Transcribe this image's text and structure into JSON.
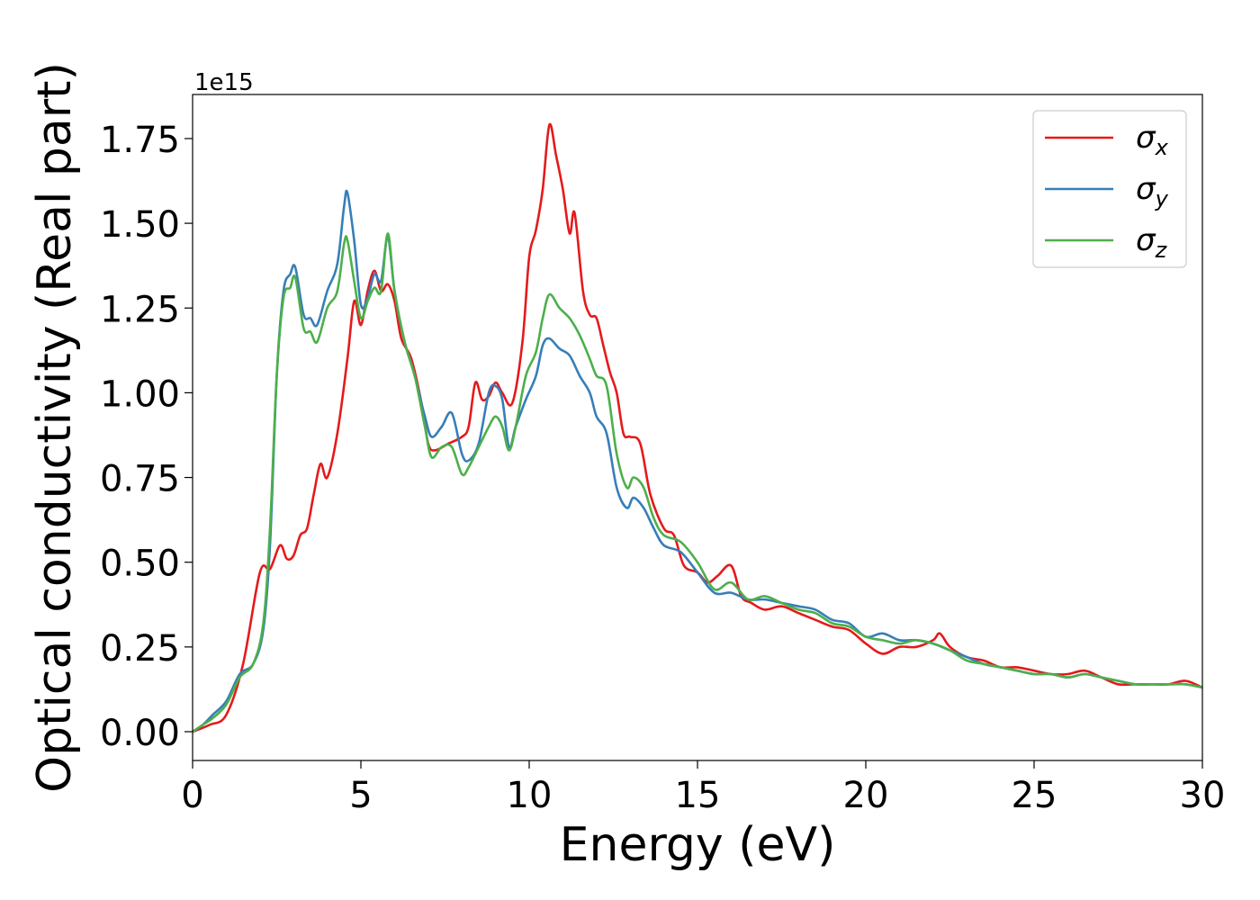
{
  "chart_data": {
    "type": "line",
    "xlabel": "Energy (eV)",
    "ylabel": "Optical conductivity (Real part)",
    "y_offset_text": "1e15",
    "xlim": [
      0,
      30
    ],
    "ylim": [
      -0.085,
      1.88
    ],
    "x_ticks": [
      0,
      5,
      10,
      15,
      20,
      25,
      30
    ],
    "x_tick_labels": [
      "0",
      "5",
      "10",
      "15",
      "20",
      "25",
      "30"
    ],
    "y_ticks": [
      0.0,
      0.25,
      0.5,
      0.75,
      1.0,
      1.25,
      1.5,
      1.75
    ],
    "y_tick_labels": [
      "0.00",
      "0.25",
      "0.50",
      "0.75",
      "1.00",
      "1.25",
      "1.50",
      "1.75"
    ],
    "grid": false,
    "legend_position": "top-right",
    "series": [
      {
        "name": "σx",
        "symbol": "σ",
        "sub": "x",
        "color": "#e41a1c",
        "points": [
          [
            0,
            0
          ],
          [
            0.5,
            0.02
          ],
          [
            1,
            0.05
          ],
          [
            1.5,
            0.2
          ],
          [
            2,
            0.47
          ],
          [
            2.3,
            0.48
          ],
          [
            2.6,
            0.55
          ],
          [
            2.8,
            0.51
          ],
          [
            3,
            0.52
          ],
          [
            3.2,
            0.58
          ],
          [
            3.4,
            0.6
          ],
          [
            3.6,
            0.7
          ],
          [
            3.8,
            0.79
          ],
          [
            4,
            0.75
          ],
          [
            4.3,
            0.88
          ],
          [
            4.6,
            1.1
          ],
          [
            4.8,
            1.27
          ],
          [
            5,
            1.2
          ],
          [
            5.2,
            1.3
          ],
          [
            5.4,
            1.36
          ],
          [
            5.6,
            1.3
          ],
          [
            5.8,
            1.32
          ],
          [
            6,
            1.27
          ],
          [
            6.2,
            1.16
          ],
          [
            6.5,
            1.1
          ],
          [
            6.8,
            0.97
          ],
          [
            7,
            0.85
          ],
          [
            7.2,
            0.83
          ],
          [
            7.6,
            0.85
          ],
          [
            8,
            0.87
          ],
          [
            8.2,
            0.9
          ],
          [
            8.4,
            1.03
          ],
          [
            8.6,
            0.98
          ],
          [
            8.8,
            0.99
          ],
          [
            9,
            1.03
          ],
          [
            9.2,
            1.0
          ],
          [
            9.5,
            0.97
          ],
          [
            9.8,
            1.15
          ],
          [
            10,
            1.4
          ],
          [
            10.2,
            1.48
          ],
          [
            10.4,
            1.6
          ],
          [
            10.6,
            1.79
          ],
          [
            10.8,
            1.7
          ],
          [
            11,
            1.6
          ],
          [
            11.2,
            1.47
          ],
          [
            11.35,
            1.53
          ],
          [
            11.6,
            1.3
          ],
          [
            11.8,
            1.23
          ],
          [
            12,
            1.22
          ],
          [
            12.2,
            1.14
          ],
          [
            12.4,
            1.06
          ],
          [
            12.6,
            1.0
          ],
          [
            12.8,
            0.88
          ],
          [
            13,
            0.87
          ],
          [
            13.3,
            0.85
          ],
          [
            13.6,
            0.7
          ],
          [
            14,
            0.6
          ],
          [
            14.3,
            0.58
          ],
          [
            14.6,
            0.49
          ],
          [
            15,
            0.47
          ],
          [
            15.3,
            0.44
          ],
          [
            15.6,
            0.46
          ],
          [
            16,
            0.49
          ],
          [
            16.3,
            0.4
          ],
          [
            16.6,
            0.38
          ],
          [
            17,
            0.36
          ],
          [
            17.5,
            0.37
          ],
          [
            18,
            0.35
          ],
          [
            18.5,
            0.33
          ],
          [
            19,
            0.31
          ],
          [
            19.5,
            0.3
          ],
          [
            20,
            0.26
          ],
          [
            20.5,
            0.23
          ],
          [
            21,
            0.25
          ],
          [
            21.5,
            0.25
          ],
          [
            22,
            0.27
          ],
          [
            22.2,
            0.29
          ],
          [
            22.5,
            0.25
          ],
          [
            23,
            0.22
          ],
          [
            23.5,
            0.21
          ],
          [
            24,
            0.19
          ],
          [
            24.5,
            0.19
          ],
          [
            25,
            0.18
          ],
          [
            25.5,
            0.17
          ],
          [
            26,
            0.17
          ],
          [
            26.5,
            0.18
          ],
          [
            27,
            0.16
          ],
          [
            27.5,
            0.14
          ],
          [
            28,
            0.14
          ],
          [
            28.5,
            0.14
          ],
          [
            29,
            0.14
          ],
          [
            29.5,
            0.15
          ],
          [
            30,
            0.13
          ]
        ]
      },
      {
        "name": "σy",
        "symbol": "σ",
        "sub": "y",
        "color": "#377eb8",
        "points": [
          [
            0,
            0
          ],
          [
            0.3,
            0.02
          ],
          [
            0.6,
            0.05
          ],
          [
            1,
            0.09
          ],
          [
            1.4,
            0.17
          ],
          [
            1.8,
            0.2
          ],
          [
            2.1,
            0.3
          ],
          [
            2.3,
            0.55
          ],
          [
            2.5,
            1.05
          ],
          [
            2.7,
            1.3
          ],
          [
            2.9,
            1.35
          ],
          [
            3.05,
            1.37
          ],
          [
            3.3,
            1.23
          ],
          [
            3.5,
            1.22
          ],
          [
            3.7,
            1.2
          ],
          [
            4,
            1.3
          ],
          [
            4.3,
            1.38
          ],
          [
            4.5,
            1.55
          ],
          [
            4.6,
            1.59
          ],
          [
            4.8,
            1.45
          ],
          [
            5,
            1.26
          ],
          [
            5.2,
            1.28
          ],
          [
            5.4,
            1.35
          ],
          [
            5.6,
            1.33
          ],
          [
            5.8,
            1.46
          ],
          [
            6,
            1.3
          ],
          [
            6.3,
            1.15
          ],
          [
            6.6,
            1.05
          ],
          [
            6.9,
            0.93
          ],
          [
            7.1,
            0.87
          ],
          [
            7.4,
            0.9
          ],
          [
            7.7,
            0.94
          ],
          [
            8,
            0.82
          ],
          [
            8.2,
            0.8
          ],
          [
            8.5,
            0.85
          ],
          [
            8.8,
            1.0
          ],
          [
            9,
            1.02
          ],
          [
            9.2,
            0.98
          ],
          [
            9.4,
            0.84
          ],
          [
            9.6,
            0.9
          ],
          [
            9.9,
            0.98
          ],
          [
            10.2,
            1.05
          ],
          [
            10.4,
            1.14
          ],
          [
            10.6,
            1.16
          ],
          [
            10.9,
            1.13
          ],
          [
            11.2,
            1.11
          ],
          [
            11.5,
            1.05
          ],
          [
            11.8,
            1.0
          ],
          [
            12,
            0.93
          ],
          [
            12.3,
            0.88
          ],
          [
            12.6,
            0.72
          ],
          [
            12.9,
            0.66
          ],
          [
            13.1,
            0.69
          ],
          [
            13.4,
            0.66
          ],
          [
            13.7,
            0.6
          ],
          [
            14,
            0.55
          ],
          [
            14.5,
            0.53
          ],
          [
            15,
            0.47
          ],
          [
            15.5,
            0.41
          ],
          [
            16,
            0.41
          ],
          [
            16.5,
            0.39
          ],
          [
            17,
            0.39
          ],
          [
            17.5,
            0.38
          ],
          [
            18,
            0.37
          ],
          [
            18.5,
            0.36
          ],
          [
            19,
            0.33
          ],
          [
            19.5,
            0.32
          ],
          [
            20,
            0.28
          ],
          [
            20.5,
            0.29
          ],
          [
            21,
            0.27
          ],
          [
            21.5,
            0.27
          ],
          [
            22,
            0.26
          ],
          [
            22.5,
            0.24
          ],
          [
            23,
            0.22
          ],
          [
            23.5,
            0.2
          ],
          [
            24,
            0.19
          ],
          [
            24.5,
            0.18
          ],
          [
            25,
            0.17
          ],
          [
            25.5,
            0.17
          ],
          [
            26,
            0.16
          ],
          [
            26.5,
            0.17
          ],
          [
            27,
            0.16
          ],
          [
            27.5,
            0.15
          ],
          [
            28,
            0.14
          ],
          [
            28.5,
            0.14
          ],
          [
            29,
            0.14
          ],
          [
            29.5,
            0.14
          ],
          [
            30,
            0.13
          ]
        ]
      },
      {
        "name": "σz",
        "symbol": "σ",
        "sub": "z",
        "color": "#4daf4a",
        "points": [
          [
            0,
            0
          ],
          [
            0.3,
            0.02
          ],
          [
            0.6,
            0.04
          ],
          [
            1,
            0.08
          ],
          [
            1.4,
            0.16
          ],
          [
            1.8,
            0.2
          ],
          [
            2.1,
            0.32
          ],
          [
            2.3,
            0.6
          ],
          [
            2.5,
            1.05
          ],
          [
            2.7,
            1.28
          ],
          [
            2.9,
            1.31
          ],
          [
            3.05,
            1.34
          ],
          [
            3.3,
            1.19
          ],
          [
            3.5,
            1.18
          ],
          [
            3.7,
            1.15
          ],
          [
            4,
            1.25
          ],
          [
            4.3,
            1.3
          ],
          [
            4.5,
            1.44
          ],
          [
            4.6,
            1.45
          ],
          [
            4.8,
            1.33
          ],
          [
            5,
            1.22
          ],
          [
            5.2,
            1.27
          ],
          [
            5.4,
            1.31
          ],
          [
            5.6,
            1.3
          ],
          [
            5.8,
            1.47
          ],
          [
            6,
            1.3
          ],
          [
            6.3,
            1.15
          ],
          [
            6.6,
            1.05
          ],
          [
            6.9,
            0.9
          ],
          [
            7.1,
            0.81
          ],
          [
            7.4,
            0.84
          ],
          [
            7.7,
            0.84
          ],
          [
            8,
            0.76
          ],
          [
            8.2,
            0.78
          ],
          [
            8.5,
            0.84
          ],
          [
            8.8,
            0.9
          ],
          [
            9,
            0.93
          ],
          [
            9.2,
            0.9
          ],
          [
            9.4,
            0.83
          ],
          [
            9.6,
            0.9
          ],
          [
            9.9,
            1.05
          ],
          [
            10.2,
            1.12
          ],
          [
            10.4,
            1.22
          ],
          [
            10.6,
            1.29
          ],
          [
            10.9,
            1.25
          ],
          [
            11.2,
            1.22
          ],
          [
            11.5,
            1.17
          ],
          [
            11.8,
            1.1
          ],
          [
            12,
            1.05
          ],
          [
            12.3,
            1.02
          ],
          [
            12.6,
            0.82
          ],
          [
            12.9,
            0.72
          ],
          [
            13.1,
            0.75
          ],
          [
            13.4,
            0.72
          ],
          [
            13.7,
            0.63
          ],
          [
            14,
            0.58
          ],
          [
            14.5,
            0.56
          ],
          [
            15,
            0.5
          ],
          [
            15.5,
            0.42
          ],
          [
            16,
            0.44
          ],
          [
            16.5,
            0.39
          ],
          [
            17,
            0.4
          ],
          [
            17.5,
            0.38
          ],
          [
            18,
            0.36
          ],
          [
            18.5,
            0.35
          ],
          [
            19,
            0.32
          ],
          [
            19.5,
            0.31
          ],
          [
            20,
            0.28
          ],
          [
            20.5,
            0.27
          ],
          [
            21,
            0.26
          ],
          [
            21.5,
            0.27
          ],
          [
            22,
            0.26
          ],
          [
            22.5,
            0.24
          ],
          [
            23,
            0.21
          ],
          [
            23.5,
            0.2
          ],
          [
            24,
            0.19
          ],
          [
            24.5,
            0.18
          ],
          [
            25,
            0.17
          ],
          [
            25.5,
            0.17
          ],
          [
            26,
            0.16
          ],
          [
            26.5,
            0.17
          ],
          [
            27,
            0.16
          ],
          [
            27.5,
            0.15
          ],
          [
            28,
            0.14
          ],
          [
            28.5,
            0.14
          ],
          [
            29,
            0.14
          ],
          [
            29.5,
            0.14
          ],
          [
            30,
            0.13
          ]
        ]
      }
    ]
  }
}
